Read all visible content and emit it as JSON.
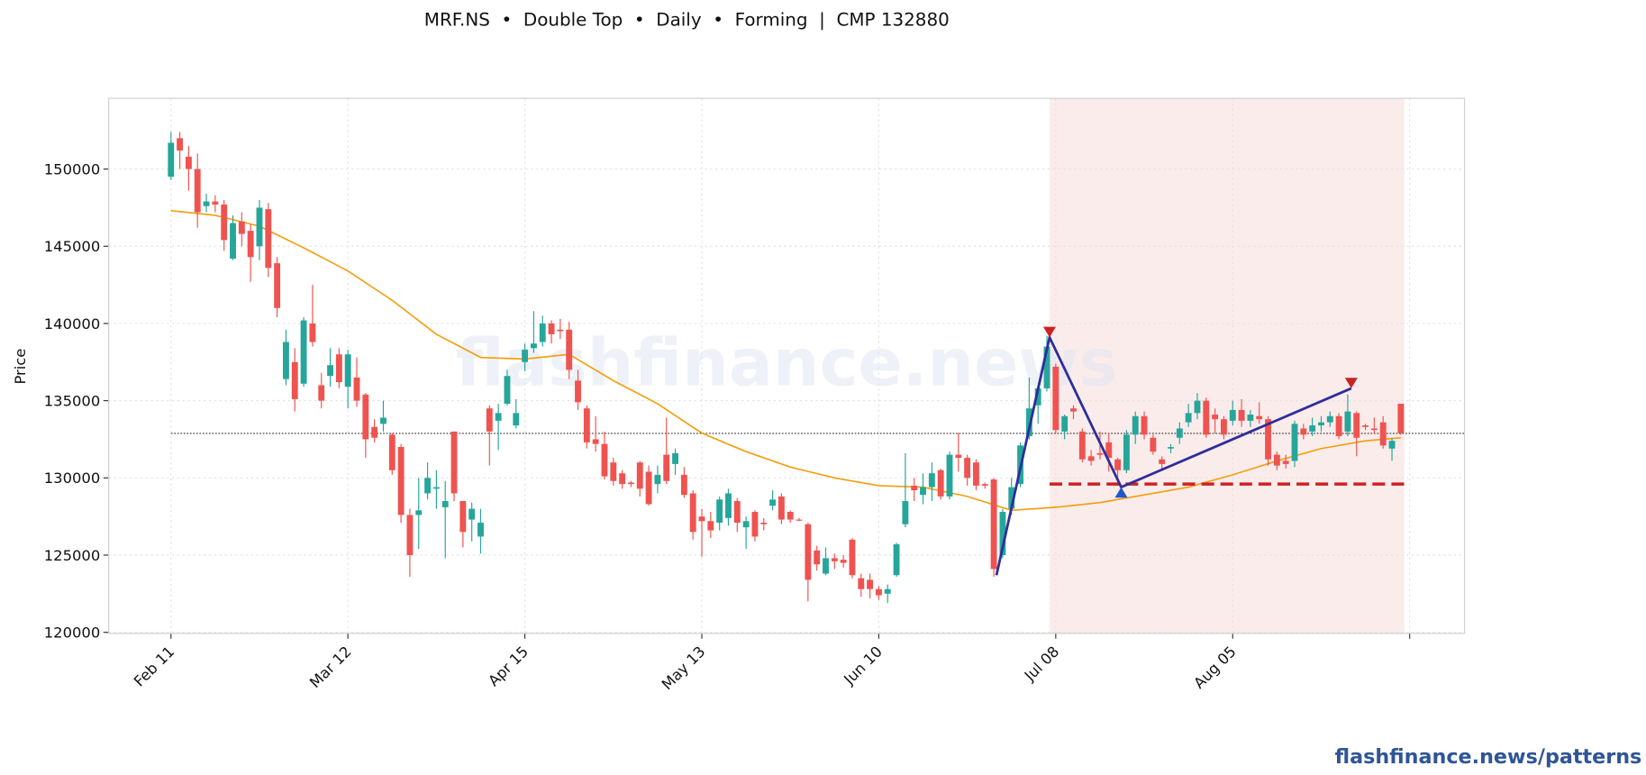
{
  "chart_data": {
    "type": "candlestick",
    "title": "MRF.NS  •  Double Top  •  Daily  •  Forming  |  CMP 132880",
    "y_label": "Price",
    "watermark": "flashfinance.news",
    "ylim": [
      119930,
      154580
    ],
    "yticks": [
      120000,
      125000,
      130000,
      135000,
      140000,
      145000,
      150000
    ],
    "xlim": [
      -7.04,
      146.2
    ],
    "xticks": [
      {
        "value": 0,
        "label": "Feb 11"
      },
      {
        "value": 20,
        "label": "Mar 12"
      },
      {
        "value": 40,
        "label": "Apr 15"
      },
      {
        "value": 60,
        "label": "May 13"
      },
      {
        "value": 80,
        "label": "Jun 10"
      },
      {
        "value": 100,
        "label": "Jul 08"
      },
      {
        "value": 120,
        "label": "Aug 05"
      },
      {
        "value": 140,
        "label": null
      }
    ],
    "grid": true,
    "up_color": "#26a69a",
    "down_color": "#ef5350",
    "x": [
      0,
      1,
      2,
      3,
      4,
      5,
      6,
      7,
      8,
      9,
      10,
      11,
      12,
      13,
      14,
      15,
      16,
      17,
      18,
      19,
      20,
      21,
      22,
      23,
      24,
      25,
      26,
      27,
      28,
      29,
      30,
      31,
      32,
      33,
      34,
      35,
      36,
      37,
      38,
      39,
      40,
      41,
      42,
      43,
      44,
      45,
      46,
      47,
      48,
      49,
      50,
      51,
      52,
      53,
      54,
      55,
      56,
      57,
      58,
      59,
      60,
      61,
      62,
      63,
      64,
      65,
      66,
      67,
      68,
      69,
      70,
      71,
      72,
      73,
      74,
      75,
      76,
      77,
      78,
      79,
      80,
      81,
      82,
      83,
      84,
      85,
      86,
      87,
      88,
      89,
      90,
      91,
      92,
      93,
      94,
      95,
      96,
      97,
      98,
      99,
      100,
      101,
      102,
      103,
      104,
      105,
      106,
      107,
      108,
      109,
      110,
      111,
      112,
      113,
      114,
      115,
      116,
      117,
      118,
      119,
      120,
      121,
      122,
      123,
      124,
      125,
      126,
      127,
      128,
      129,
      130,
      131,
      132,
      133,
      134,
      135,
      136,
      137,
      138,
      139
    ],
    "open": [
      149500,
      152000,
      150800,
      150000,
      147600,
      147900,
      147700,
      144200,
      146600,
      146000,
      145000,
      147400,
      143900,
      136400,
      137500,
      136100,
      140000,
      136000,
      136600,
      138000,
      135900,
      136500,
      135400,
      133300,
      133500,
      132800,
      132000,
      127600,
      127600,
      129000,
      129300,
      128100,
      133000,
      128500,
      127300,
      126200,
      134500,
      133700,
      134800,
      133400,
      137500,
      138400,
      138800,
      140000,
      139600,
      139600,
      136300,
      134500,
      132500,
      132200,
      131000,
      130300,
      129700,
      131000,
      130400,
      129600,
      131500,
      130900,
      130200,
      129000,
      127500,
      127200,
      127100,
      127400,
      128500,
      126800,
      127800,
      127100,
      128200,
      128800,
      127800,
      127300,
      127000,
      125300,
      123800,
      124800,
      124700,
      126000,
      123500,
      123400,
      122800,
      122500,
      123700,
      127000,
      129500,
      128900,
      129400,
      130500,
      128800,
      131500,
      131300,
      131000,
      129600,
      129900,
      125000,
      128000,
      129600,
      132700,
      134700,
      135800,
      137200,
      133000,
      134500,
      133000,
      131400,
      131600,
      132300,
      131200,
      130500,
      132800,
      134000,
      132600,
      131200,
      131900,
      132600,
      133600,
      134200,
      135000,
      134100,
      133800,
      133700,
      134400,
      133700,
      134000,
      133800,
      131500,
      131100,
      131100,
      133200,
      133000,
      133400,
      133600,
      134000,
      133000,
      134200,
      133400,
      133200,
      133600,
      131900,
      134800
    ],
    "high": [
      152400,
      152400,
      151500,
      151000,
      148400,
      148300,
      148000,
      147000,
      147200,
      146400,
      148000,
      147800,
      144300,
      139600,
      138400,
      140400,
      142500,
      136800,
      138400,
      138400,
      138300,
      137800,
      135500,
      133800,
      135000,
      132900,
      132200,
      128000,
      130000,
      131000,
      130500,
      129800,
      133000,
      128500,
      128400,
      128000,
      134700,
      134800,
      137000,
      135100,
      138700,
      140800,
      140500,
      140200,
      140300,
      140100,
      137000,
      134700,
      134000,
      133000,
      131300,
      130500,
      129800,
      131100,
      130800,
      130800,
      133900,
      131900,
      130700,
      129200,
      128000,
      127800,
      128800,
      129300,
      128700,
      127500,
      127900,
      127400,
      129200,
      129000,
      127900,
      127400,
      127100,
      125600,
      125500,
      125100,
      125000,
      126100,
      123800,
      123800,
      123000,
      123100,
      125800,
      131600,
      130000,
      130300,
      131000,
      130600,
      131700,
      132900,
      131500,
      131200,
      129700,
      130000,
      128000,
      130000,
      132300,
      136500,
      136000,
      139200,
      137400,
      134100,
      134700,
      133200,
      131800,
      133000,
      132900,
      131300,
      133100,
      134300,
      134300,
      132800,
      131400,
      132200,
      133600,
      134800,
      135500,
      135200,
      134500,
      134000,
      135000,
      135100,
      134400,
      134900,
      134000,
      131700,
      131500,
      133700,
      133500,
      133900,
      134000,
      134300,
      134200,
      135400,
      134300,
      133500,
      133900,
      134000,
      132600,
      134800
    ],
    "low": [
      149300,
      150000,
      148600,
      146200,
      147200,
      147200,
      144700,
      144100,
      145000,
      142700,
      144100,
      143000,
      140400,
      136000,
      134300,
      135900,
      138500,
      134500,
      135900,
      135800,
      134500,
      134600,
      131300,
      132300,
      133000,
      130200,
      127100,
      123600,
      125400,
      128600,
      128000,
      124800,
      128500,
      125500,
      125900,
      125100,
      130800,
      131800,
      134700,
      133200,
      136900,
      138100,
      138500,
      138700,
      139000,
      136400,
      134400,
      131900,
      131700,
      129900,
      129500,
      129300,
      129400,
      128800,
      128200,
      129000,
      129600,
      130200,
      128700,
      126000,
      124900,
      126100,
      126600,
      126900,
      126500,
      125400,
      125900,
      126600,
      127900,
      127000,
      127100,
      127200,
      122000,
      124000,
      123700,
      124100,
      124200,
      123500,
      122300,
      122200,
      122100,
      121900,
      123600,
      126800,
      128500,
      128300,
      128500,
      128600,
      128600,
      130400,
      129500,
      129200,
      129300,
      123600,
      124800,
      127600,
      129400,
      132500,
      133500,
      135600,
      132900,
      132500,
      133800,
      131000,
      130800,
      131200,
      130400,
      129500,
      130300,
      132200,
      132500,
      131500,
      130600,
      131600,
      132200,
      133300,
      133800,
      132600,
      132900,
      132500,
      133400,
      133300,
      133300,
      133500,
      130800,
      130500,
      130600,
      130700,
      132500,
      132700,
      133000,
      133300,
      132500,
      132700,
      131400,
      133100,
      132900,
      131900,
      131100,
      132800
    ],
    "close": [
      151700,
      151200,
      150000,
      147200,
      147900,
      147700,
      145400,
      146500,
      145800,
      144300,
      147500,
      143600,
      141000,
      138800,
      135100,
      140200,
      138800,
      135000,
      137300,
      136200,
      138000,
      135000,
      132500,
      132600,
      133900,
      130500,
      127600,
      125000,
      127900,
      130000,
      129400,
      128500,
      129000,
      126500,
      128000,
      127100,
      133000,
      134200,
      136600,
      134200,
      138300,
      138700,
      140000,
      139300,
      139500,
      137000,
      134900,
      132300,
      132200,
      130100,
      129800,
      129600,
      129600,
      129300,
      128300,
      130200,
      129800,
      131600,
      128900,
      126500,
      127200,
      126600,
      128600,
      129000,
      127100,
      127200,
      126200,
      127000,
      128600,
      127300,
      127300,
      127250,
      123400,
      124400,
      124800,
      124600,
      124500,
      123700,
      122800,
      122800,
      122400,
      122800,
      125700,
      128500,
      129200,
      129400,
      130300,
      128800,
      131500,
      131300,
      130000,
      129500,
      129500,
      124100,
      127800,
      129400,
      132100,
      134500,
      135800,
      138500,
      133100,
      134000,
      134300,
      131200,
      131100,
      131500,
      131300,
      130500,
      132800,
      134000,
      132800,
      131700,
      130900,
      132000,
      133200,
      134200,
      135000,
      132800,
      133800,
      132800,
      134400,
      133700,
      134100,
      133800,
      131200,
      130800,
      130900,
      133500,
      132800,
      133400,
      133600,
      134000,
      132700,
      134300,
      132600,
      133300,
      133100,
      132100,
      132400,
      132900
    ],
    "moving_average": {
      "color": "#f59e0b",
      "x": [
        0,
        5,
        10,
        15,
        20,
        25,
        30,
        35,
        40,
        45,
        50,
        55,
        60,
        65,
        70,
        75,
        80,
        85,
        90,
        95,
        100,
        105,
        110,
        115,
        120,
        125,
        130,
        135,
        139
      ],
      "values": [
        147300,
        147000,
        146300,
        144900,
        143400,
        141500,
        139300,
        137800,
        137700,
        138000,
        136300,
        134800,
        132900,
        131700,
        130700,
        130000,
        129500,
        129400,
        128800,
        127900,
        128100,
        128400,
        128900,
        129400,
        130200,
        131100,
        131900,
        132400,
        132600
      ]
    },
    "cmp": 132880,
    "highlight_x": [
      99.3,
      139.4
    ],
    "pattern": {
      "color": "#2e2e9a",
      "x": [
        93.3,
        99.3,
        107.4,
        133.4
      ],
      "values": [
        123700,
        139100,
        129400,
        135800
      ],
      "point_shapes": [
        null,
        "triangle-down",
        "triangle-up",
        "triangle-down"
      ],
      "point_colors": [
        null,
        "#cc2222",
        "#2255cc",
        "#cc2222"
      ]
    },
    "neckline": {
      "value": 129600,
      "x": [
        99.3,
        139.4
      ],
      "color": "#cc2222"
    }
  },
  "footer": "flashfinance.news/patterns"
}
